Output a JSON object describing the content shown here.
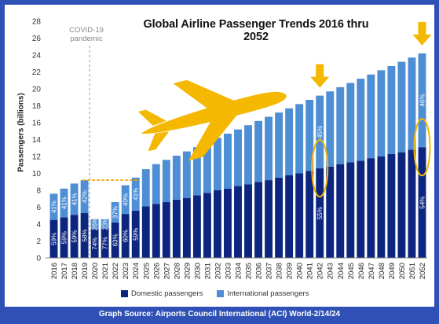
{
  "title": "Global Airline Passenger Trends 2016 thru 2052",
  "source": "Graph Source: Airports Council International (ACI) World-2/14/24",
  "covid_label": "COVID-19 pandemic",
  "colors": {
    "domestic": "#0c2680",
    "international": "#4e8ed4",
    "highlight": "#f5b800",
    "background": "#2f51b5"
  },
  "icons": [
    "airplane-icon",
    "down-arrow-icon"
  ],
  "chart_data": {
    "type": "bar",
    "stacked": true,
    "title": "Global Airline Passenger Trends 2016 thru 2052",
    "ylabel": "Passengers (billions)",
    "ylim": [
      0,
      28
    ],
    "yticks": [
      0,
      2,
      4,
      6,
      8,
      10,
      12,
      14,
      16,
      18,
      20,
      22,
      24,
      26,
      28
    ],
    "legend_position": "bottom",
    "grid": false,
    "categories": [
      "2016",
      "2017",
      "2018",
      "2019",
      "2020",
      "2021",
      "2022",
      "2023",
      "2024",
      "2025",
      "2026",
      "2027",
      "2028",
      "2029",
      "2030",
      "2031",
      "2032",
      "2033",
      "2034",
      "2035",
      "2036",
      "2037",
      "2038",
      "2039",
      "2040",
      "2041",
      "2042",
      "2043",
      "2044",
      "2045",
      "2046",
      "2047",
      "2048",
      "2049",
      "2050",
      "2051",
      "2052"
    ],
    "totals": [
      7.6,
      8.2,
      8.8,
      9.2,
      4.6,
      4.6,
      6.6,
      8.6,
      9.5,
      10.5,
      11.1,
      11.6,
      12.1,
      12.6,
      13.1,
      13.7,
      14.2,
      14.7,
      15.2,
      15.7,
      16.2,
      16.7,
      17.2,
      17.7,
      18.2,
      18.7,
      19.2,
      19.7,
      20.2,
      20.7,
      21.2,
      21.7,
      22.2,
      22.7,
      23.2,
      23.7,
      24.2
    ],
    "series": [
      {
        "name": "Domestic passengers",
        "values": [
          4.5,
          4.8,
          5.1,
          5.3,
          3.4,
          3.5,
          4.2,
          5.2,
          5.6,
          6.1,
          6.4,
          6.6,
          6.9,
          7.1,
          7.4,
          7.7,
          8.0,
          8.2,
          8.5,
          8.7,
          9.0,
          9.2,
          9.5,
          9.8,
          10.0,
          10.3,
          10.6,
          10.8,
          11.1,
          11.3,
          11.5,
          11.8,
          12.0,
          12.3,
          12.5,
          12.8,
          13.1
        ]
      },
      {
        "name": "International passengers",
        "values": [
          3.1,
          3.4,
          3.7,
          3.9,
          1.2,
          1.1,
          2.4,
          3.4,
          3.9,
          4.4,
          4.7,
          5.0,
          5.2,
          5.5,
          5.7,
          6.0,
          6.2,
          6.5,
          6.7,
          7.0,
          7.2,
          7.5,
          7.7,
          7.9,
          8.2,
          8.4,
          8.6,
          8.9,
          9.1,
          9.4,
          9.7,
          9.9,
          10.2,
          10.4,
          10.7,
          10.9,
          11.1
        ]
      }
    ],
    "data_labels": [
      {
        "category": "2016",
        "domestic": "59%",
        "international": "41%"
      },
      {
        "category": "2017",
        "domestic": "59%",
        "international": "41%"
      },
      {
        "category": "2018",
        "domestic": "59%",
        "international": "41%"
      },
      {
        "category": "2019",
        "domestic": "58%",
        "international": "42%"
      },
      {
        "category": "2020",
        "domestic": "74%",
        "international": "26%"
      },
      {
        "category": "2021",
        "domestic": "77%",
        "international": "23%"
      },
      {
        "category": "2022",
        "domestic": "63%",
        "international": "37%"
      },
      {
        "category": "2023",
        "domestic": "60%",
        "international": "40%"
      },
      {
        "category": "2024",
        "domestic": "59%",
        "international": "41%"
      },
      {
        "category": "2042",
        "domestic": "55%",
        "international": "45%"
      },
      {
        "category": "2052",
        "domestic": "54%",
        "international": "46%"
      }
    ],
    "annotations": [
      "COVID-19 pandemic"
    ]
  }
}
